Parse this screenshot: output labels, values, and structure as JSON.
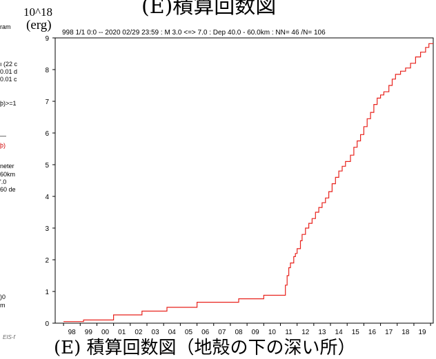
{
  "page_title_fragment": "(E)積算回数図",
  "unit_exponent": "10^18",
  "unit_label": "(erg)",
  "header_info": "998 1/1 0:0 -- 2020 02/29 23:59  : M 3.0 <=> 7.0   : Dep 40.0 - 60.0km : NN= 46 /N= 106",
  "left_panel_fragments": [
    "ram",
    "ı (22 c",
    "0.01 d",
    "0.01 c",
    "þ)>=1",
    "—",
    "þ)",
    "neter",
    " 60km",
    "'.0",
    " 60 de",
    ")0",
    "m"
  ],
  "footer_fragment": "EIS-f",
  "bottom_caption_fragment": "(E) 積算回数図（地殻の下の深い所）",
  "colors": {
    "line": "#e8211b",
    "axis": "#000000",
    "background": "#ffffff"
  },
  "chart_data": {
    "type": "line",
    "step": true,
    "title": "",
    "xlabel": "",
    "ylabel": "(erg)",
    "ylim": [
      0,
      9
    ],
    "xlim": [
      1997.5,
      2020.16
    ],
    "yticks": [
      0,
      1,
      2,
      3,
      4,
      5,
      6,
      7,
      8,
      9
    ],
    "xtick_labels": [
      "98",
      "99",
      "00",
      "01",
      "02",
      "03",
      "04",
      "05",
      "06",
      "07",
      "08",
      "09",
      "10",
      "11",
      "12",
      "13",
      "14",
      "15",
      "16",
      "17",
      "18",
      "19"
    ],
    "xtick_years": [
      1998,
      1999,
      2000,
      2001,
      2002,
      2003,
      2004,
      2005,
      2006,
      2007,
      2008,
      2009,
      2010,
      2011,
      2012,
      2013,
      2014,
      2015,
      2016,
      2017,
      2018,
      2019
    ],
    "grid": false,
    "legend": "none",
    "series": [
      {
        "color": "#e8211b",
        "x": [
          1998.0,
          1999.2,
          2001.0,
          2002.7,
          2004.2,
          2006.0,
          2008.5,
          2010.0,
          2011.3,
          2011.4,
          2011.5,
          2011.6,
          2011.8,
          2011.9,
          2012.0,
          2012.2,
          2012.3,
          2012.5,
          2012.7,
          2012.9,
          2013.1,
          2013.3,
          2013.5,
          2013.7,
          2013.9,
          2014.1,
          2014.3,
          2014.5,
          2014.7,
          2014.9,
          2015.2,
          2015.4,
          2015.6,
          2015.8,
          2016.0,
          2016.2,
          2016.4,
          2016.6,
          2016.8,
          2017.0,
          2017.2,
          2017.5,
          2017.7,
          2017.9,
          2018.2,
          2018.5,
          2018.8,
          2019.1,
          2019.4,
          2019.7,
          2019.9,
          2020.16
        ],
        "y": [
          0.05,
          0.1,
          0.26,
          0.38,
          0.5,
          0.66,
          0.77,
          0.88,
          1.2,
          1.5,
          1.75,
          1.9,
          2.1,
          2.2,
          2.35,
          2.6,
          2.8,
          3.0,
          3.15,
          3.3,
          3.5,
          3.65,
          3.8,
          3.95,
          4.15,
          4.4,
          4.6,
          4.8,
          4.95,
          5.1,
          5.3,
          5.55,
          5.75,
          5.95,
          6.2,
          6.45,
          6.65,
          6.9,
          7.1,
          7.2,
          7.3,
          7.5,
          7.7,
          7.85,
          7.95,
          8.05,
          8.2,
          8.4,
          8.55,
          8.7,
          8.82,
          8.82
        ]
      }
    ]
  }
}
